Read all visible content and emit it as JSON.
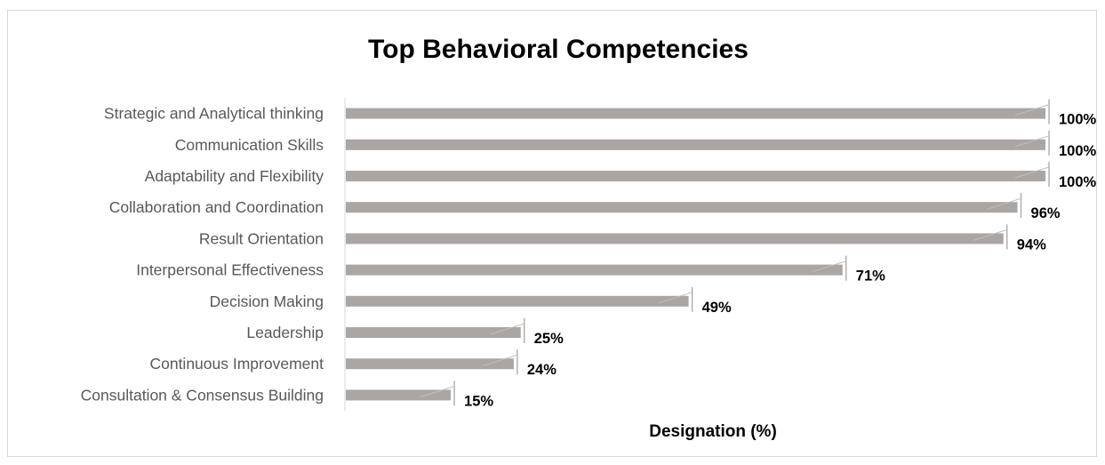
{
  "chart_data": {
    "type": "bar",
    "orientation": "horizontal",
    "title": "Top Behavioral Competencies",
    "xlabel": "Designation (%)",
    "ylabel": "",
    "xlim": [
      0,
      100
    ],
    "grid": false,
    "legend": "none",
    "bar_color": "#aaa6a4",
    "categories": [
      "Strategic and Analytical thinking",
      "Communication Skills",
      "Adaptability and Flexibility",
      "Collaboration and Coordination",
      "Result Orientation",
      "Interpersonal Effectiveness",
      "Decision Making",
      "Leadership",
      "Continuous Improvement",
      "Consultation & Consensus Building"
    ],
    "values": [
      100,
      100,
      100,
      96,
      94,
      71,
      49,
      25,
      24,
      15
    ],
    "data_labels": [
      "100%",
      "100%",
      "100%",
      "96%",
      "94%",
      "71%",
      "49%",
      "25%",
      "24%",
      "15%"
    ]
  }
}
